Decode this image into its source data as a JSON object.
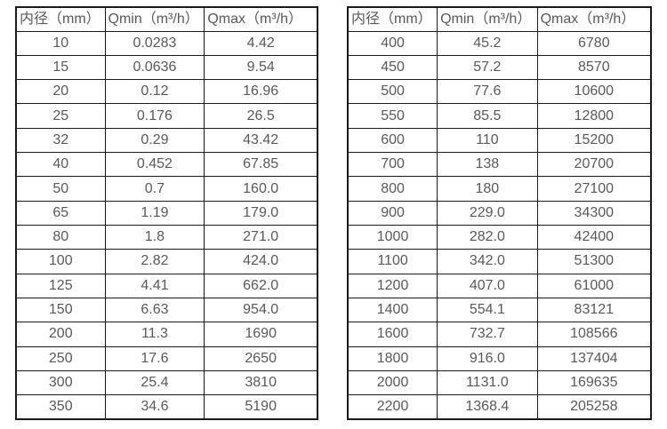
{
  "colors": {
    "background": "#ffffff",
    "text": "#595959",
    "border": "#1a1a1a"
  },
  "tables": [
    {
      "name": "small-diameter-flow-table",
      "headers": [
        "内径（mm）",
        "Qmin（m³/h）",
        "Qmax（m³/h）"
      ],
      "rows": [
        [
          "10",
          "0.0283",
          "4.42"
        ],
        [
          "15",
          "0.0636",
          "9.54"
        ],
        [
          "20",
          "0.12",
          "16.96"
        ],
        [
          "25",
          "0.176",
          "26.5"
        ],
        [
          "32",
          "0.29",
          "43.42"
        ],
        [
          "40",
          "0.452",
          "67.85"
        ],
        [
          "50",
          "0.7",
          "160.0"
        ],
        [
          "65",
          "1.19",
          "179.0"
        ],
        [
          "80",
          "1.8",
          "271.0"
        ],
        [
          "100",
          "2.82",
          "424.0"
        ],
        [
          "125",
          "4.41",
          "662.0"
        ],
        [
          "150",
          "6.63",
          "954.0"
        ],
        [
          "200",
          "11.3",
          "1690"
        ],
        [
          "250",
          "17.6",
          "2650"
        ],
        [
          "300",
          "25.4",
          "3810"
        ],
        [
          "350",
          "34.6",
          "5190"
        ]
      ]
    },
    {
      "name": "large-diameter-flow-table",
      "headers": [
        "内径（mm）",
        "Qmin（m³/h）",
        "Qmax（m³/h）"
      ],
      "rows": [
        [
          "400",
          "45.2",
          "6780"
        ],
        [
          "450",
          "57.2",
          "8570"
        ],
        [
          "500",
          "77.6",
          "10600"
        ],
        [
          "550",
          "85.5",
          "12800"
        ],
        [
          "600",
          "110",
          "15200"
        ],
        [
          "700",
          "138",
          "20700"
        ],
        [
          "800",
          "180",
          "27100"
        ],
        [
          "900",
          "229.0",
          "34300"
        ],
        [
          "1000",
          "282.0",
          "42400"
        ],
        [
          "1100",
          "342.0",
          "51300"
        ],
        [
          "1200",
          "407.0",
          "61000"
        ],
        [
          "1400",
          "554.1",
          "83121"
        ],
        [
          "1600",
          "732.7",
          "108566"
        ],
        [
          "1800",
          "916.0",
          "137404"
        ],
        [
          "2000",
          "1131.0",
          "169635"
        ],
        [
          "2200",
          "1368.4",
          "205258"
        ]
      ]
    }
  ]
}
